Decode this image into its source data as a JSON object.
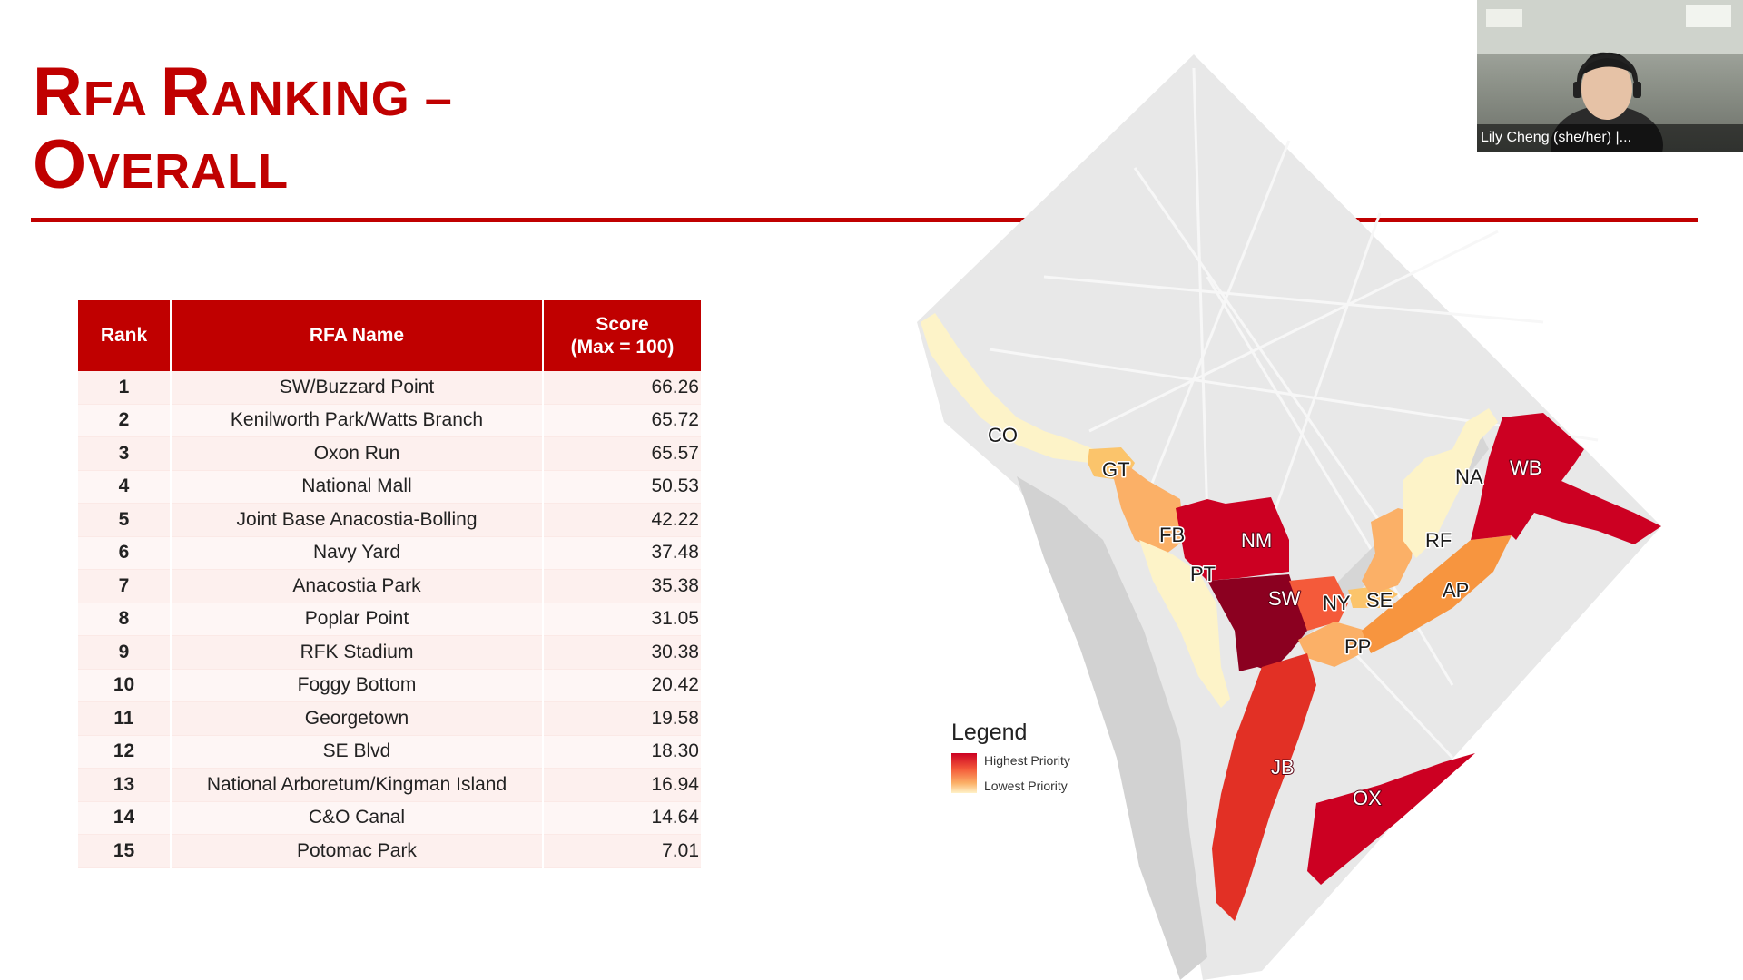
{
  "slide": {
    "title_line1_big1": "R",
    "title_line1_small1": "FA ",
    "title_line1_big2": "R",
    "title_line1_small2": "ANKING –",
    "title_line2_big": "O",
    "title_line2_small": "VERALL"
  },
  "table": {
    "headers": {
      "rank": "Rank",
      "name": "RFA Name",
      "score_line1": "Score",
      "score_line2": "(Max = 100)"
    },
    "rows": [
      {
        "rank": "1",
        "name": "SW/Buzzard Point",
        "score": "66.26"
      },
      {
        "rank": "2",
        "name": "Kenilworth Park/Watts Branch",
        "score": "65.72"
      },
      {
        "rank": "3",
        "name": "Oxon Run",
        "score": "65.57"
      },
      {
        "rank": "4",
        "name": "National Mall",
        "score": "50.53"
      },
      {
        "rank": "5",
        "name": "Joint Base Anacostia-Bolling",
        "score": "42.22"
      },
      {
        "rank": "6",
        "name": "Navy Yard",
        "score": "37.48"
      },
      {
        "rank": "7",
        "name": "Anacostia Park",
        "score": "35.38"
      },
      {
        "rank": "8",
        "name": "Poplar Point",
        "score": "31.05"
      },
      {
        "rank": "9",
        "name": "RFK Stadium",
        "score": "30.38"
      },
      {
        "rank": "10",
        "name": "Foggy Bottom",
        "score": "20.42"
      },
      {
        "rank": "11",
        "name": "Georgetown",
        "score": "19.58"
      },
      {
        "rank": "12",
        "name": "SE Blvd",
        "score": "18.30"
      },
      {
        "rank": "13",
        "name": "National Arboretum/Kingman Island",
        "score": "16.94"
      },
      {
        "rank": "14",
        "name": "C&O Canal",
        "score": "14.64"
      },
      {
        "rank": "15",
        "name": "Potomac Park",
        "score": "7.01"
      }
    ]
  },
  "map": {
    "labels": {
      "co": "CO",
      "gt": "GT",
      "fb": "FB",
      "nm": "NM",
      "pt": "PT",
      "sw": "SW",
      "ny": "NY",
      "se": "SE",
      "pp": "PP",
      "ap": "AP",
      "rf": "RF",
      "na": "NA",
      "wb": "WB",
      "jb": "JB",
      "ox": "OX"
    },
    "colors": {
      "highest": "#cc0022",
      "darkest": "#8b0020",
      "mid": "#f45a3a",
      "orange": "#f7953f",
      "light": "#fbc46b",
      "lowest": "#fdf3c8",
      "base": "#e6e6e6",
      "water": "#d2d2d2"
    }
  },
  "legend": {
    "title": "Legend",
    "highest": "Highest Priority",
    "lowest": "Lowest Priority"
  },
  "video": {
    "participant_name": "Lily Cheng (she/her) |..."
  }
}
